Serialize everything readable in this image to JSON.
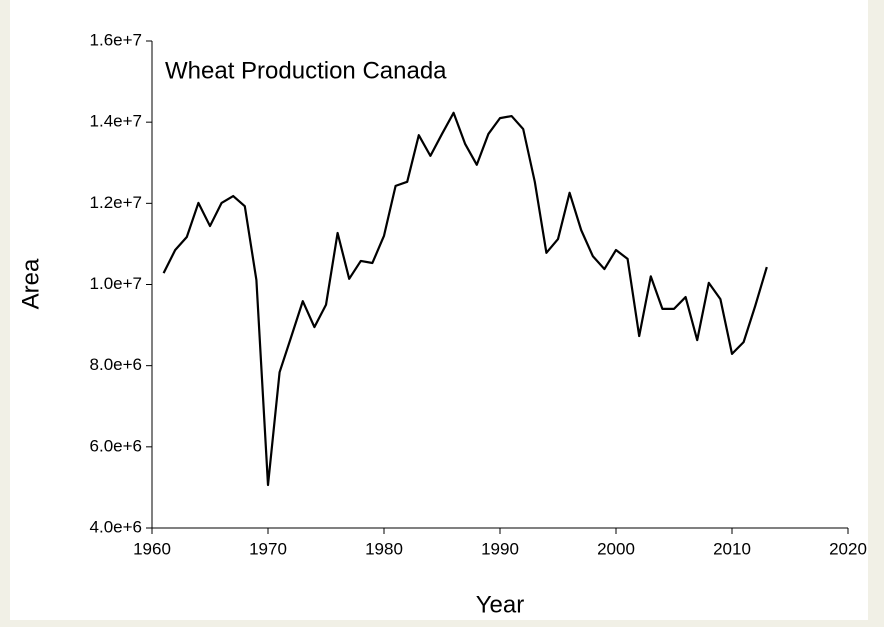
{
  "chart_data": {
    "type": "line",
    "title": "Wheat Production Canada",
    "x_label": "Year",
    "y_label": "Area",
    "x": [
      1961,
      1962,
      1963,
      1964,
      1965,
      1966,
      1967,
      1968,
      1969,
      1970,
      1971,
      1972,
      1973,
      1974,
      1975,
      1976,
      1977,
      1978,
      1979,
      1980,
      1981,
      1982,
      1983,
      1984,
      1985,
      1986,
      1987,
      1988,
      1989,
      1990,
      1991,
      1992,
      1993,
      1994,
      1995,
      1996,
      1997,
      1998,
      1999,
      2000,
      2001,
      2002,
      2003,
      2004,
      2005,
      2006,
      2007,
      2008,
      2009,
      2010,
      2011,
      2012,
      2013
    ],
    "series": [
      {
        "name": "Area",
        "color": "#000000",
        "values": [
          10280000,
          10850000,
          11170000,
          12010000,
          11440000,
          12010000,
          12180000,
          11930000,
          10110000,
          5060000,
          7840000,
          8710000,
          9590000,
          8950000,
          9500000,
          11270000,
          10140000,
          10580000,
          10530000,
          11200000,
          12430000,
          12530000,
          13680000,
          13170000,
          13710000,
          14230000,
          13460000,
          12950000,
          13710000,
          14100000,
          14150000,
          13830000,
          12530000,
          10780000,
          11120000,
          12260000,
          11340000,
          10700000,
          10380000,
          10850000,
          10630000,
          8730000,
          10200000,
          9400000,
          9400000,
          9690000,
          8630000,
          10040000,
          9640000,
          8290000,
          8580000,
          9470000,
          10430000
        ]
      }
    ],
    "xlim": [
      1960,
      2020
    ],
    "xticks": [
      1960,
      1970,
      1980,
      1990,
      2000,
      2010,
      2020
    ],
    "ylim": [
      4000000,
      16000000
    ],
    "yticks": [
      {
        "value": 4000000,
        "label": "4.0e+6"
      },
      {
        "value": 6000000,
        "label": "6.0e+6"
      },
      {
        "value": 8000000,
        "label": "8.0e+6"
      },
      {
        "value": 10000000,
        "label": "1.0e+7"
      },
      {
        "value": 12000000,
        "label": "1.2e+7"
      },
      {
        "value": 14000000,
        "label": "1.4e+7"
      },
      {
        "value": 16000000,
        "label": "1.6e+7"
      }
    ]
  }
}
